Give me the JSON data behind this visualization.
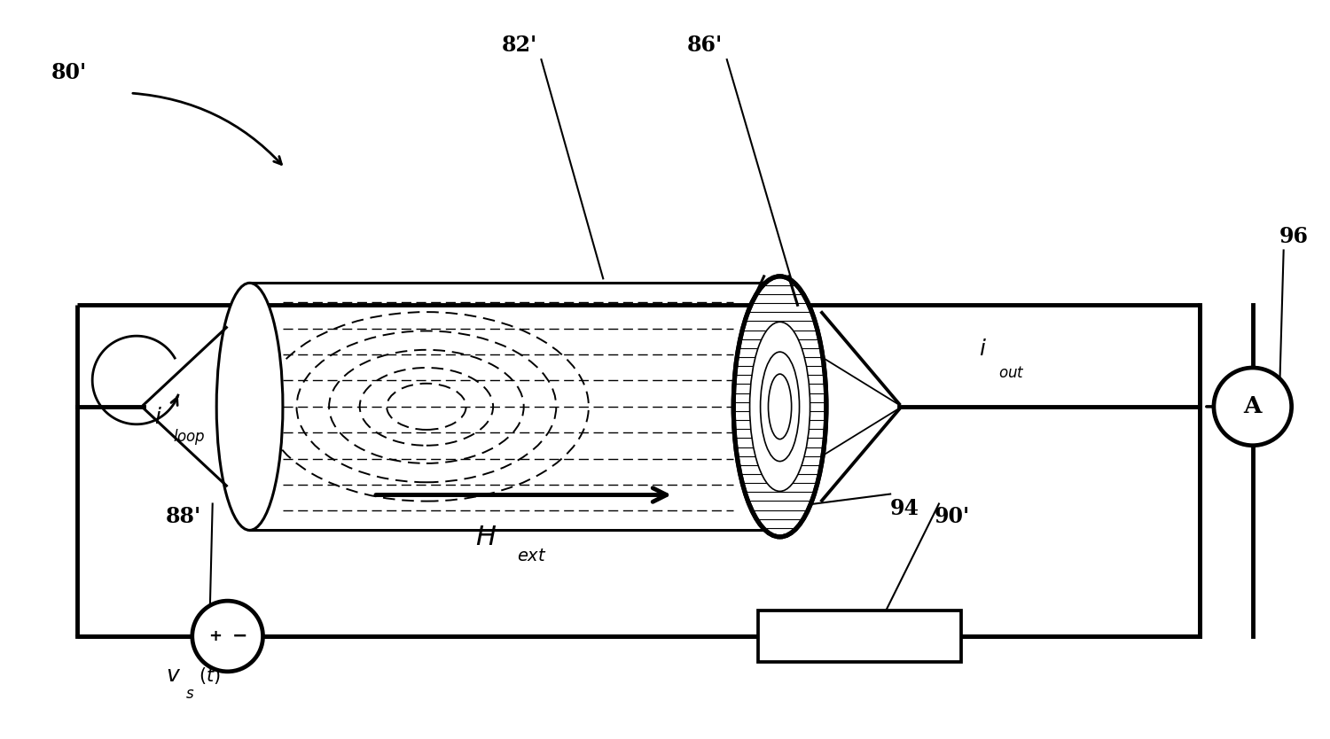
{
  "bg_color": "#ffffff",
  "line_color": "#000000",
  "fig_width": 15.0,
  "fig_height": 8.34,
  "dpi": 100
}
